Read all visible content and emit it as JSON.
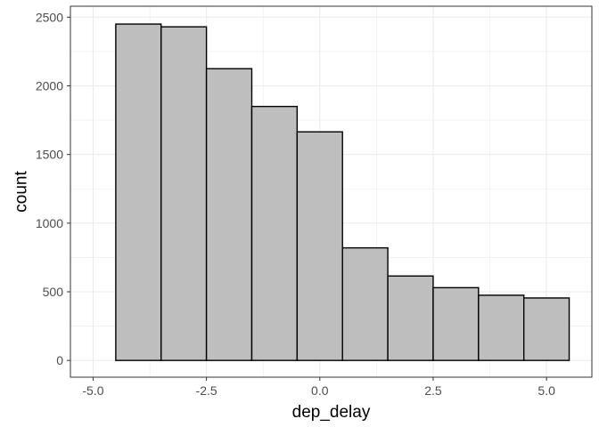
{
  "chart_data": {
    "type": "bar",
    "title": "",
    "xlabel": "dep_delay",
    "ylabel": "count",
    "bin_width": 1,
    "bins": [
      {
        "x": -4,
        "count": 2450
      },
      {
        "x": -3,
        "count": 2430
      },
      {
        "x": -2,
        "count": 2125
      },
      {
        "x": -1,
        "count": 1850
      },
      {
        "x": 0,
        "count": 1665
      },
      {
        "x": 1,
        "count": 820
      },
      {
        "x": 2,
        "count": 615
      },
      {
        "x": 3,
        "count": 530
      },
      {
        "x": 4,
        "count": 475
      },
      {
        "x": 5,
        "count": 455
      }
    ],
    "xlim": [
      -5.5,
      6.0
    ],
    "ylim": [
      -122,
      2580
    ],
    "x_ticks": [
      {
        "value": -5.0,
        "label": "-5.0"
      },
      {
        "value": -2.5,
        "label": "-2.5"
      },
      {
        "value": 0.0,
        "label": "0.0"
      },
      {
        "value": 2.5,
        "label": "2.5"
      },
      {
        "value": 5.0,
        "label": "5.0"
      }
    ],
    "y_ticks": [
      {
        "value": 0,
        "label": "0"
      },
      {
        "value": 500,
        "label": "500"
      },
      {
        "value": 1000,
        "label": "1000"
      },
      {
        "value": 1500,
        "label": "1500"
      },
      {
        "value": 2000,
        "label": "2000"
      },
      {
        "value": 2500,
        "label": "2500"
      }
    ],
    "grid": true,
    "bar_fill": "#bebebe",
    "bar_stroke": "#000000",
    "grid_color": "#ebebeb",
    "panel_border": "#333333"
  }
}
